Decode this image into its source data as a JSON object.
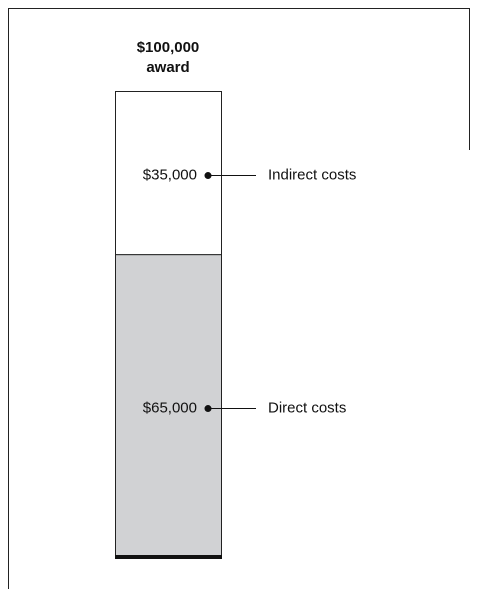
{
  "chart_data": {
    "type": "stacked-bar",
    "title": [
      "$100,000",
      "award"
    ],
    "categories": [
      null
    ],
    "ylim": [
      0,
      100000
    ],
    "series": [
      {
        "name": "Direct costs",
        "color": "#d1d2d4",
        "values": [
          65000
        ],
        "value_labels": [
          "$65,000"
        ]
      },
      {
        "name": "Indirect costs",
        "color": "#ffffff",
        "values": [
          35000
        ],
        "value_labels": [
          "$35,000"
        ]
      }
    ]
  }
}
